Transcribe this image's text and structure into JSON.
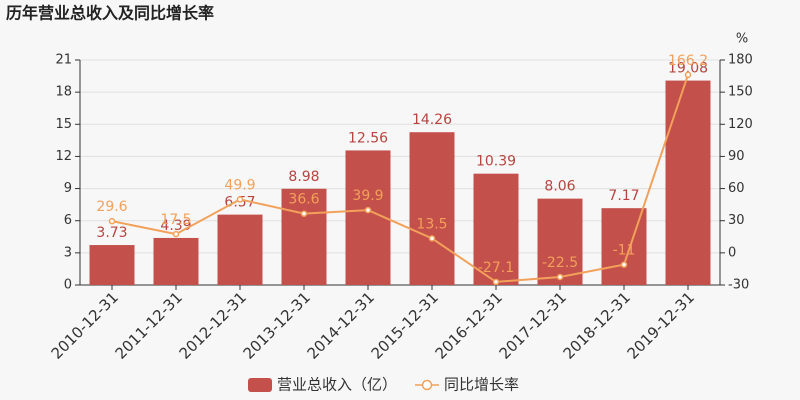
{
  "chart_data": {
    "type": "bar",
    "title": "历年营业总收入及同比增长率",
    "categories": [
      "2010-12-31",
      "2011-12-31",
      "2012-12-31",
      "2013-12-31",
      "2014-12-31",
      "2015-12-31",
      "2016-12-31",
      "2017-12-31",
      "2018-12-31",
      "2019-12-31"
    ],
    "series": [
      {
        "name": "营业总收入（亿）",
        "type": "bar",
        "color": "#c4504c",
        "values": [
          3.73,
          4.39,
          6.57,
          8.98,
          12.56,
          14.26,
          10.39,
          8.06,
          7.17,
          19.08
        ]
      },
      {
        "name": "同比增长率",
        "type": "line",
        "axis": "y2",
        "color": "#f2a15a",
        "values": [
          29.6,
          17.5,
          49.9,
          36.6,
          39.9,
          13.5,
          -27.1,
          -22.5,
          -11,
          166.2
        ]
      }
    ],
    "ylim": [
      0,
      21
    ],
    "yticks": [
      0,
      3,
      6,
      9,
      12,
      15,
      18,
      21
    ],
    "y2lim": [
      -30,
      180
    ],
    "y2ticks": [
      -30,
      0,
      30,
      60,
      90,
      120,
      150,
      180
    ],
    "y2label": "%",
    "grid": true,
    "legend": "bottom"
  }
}
